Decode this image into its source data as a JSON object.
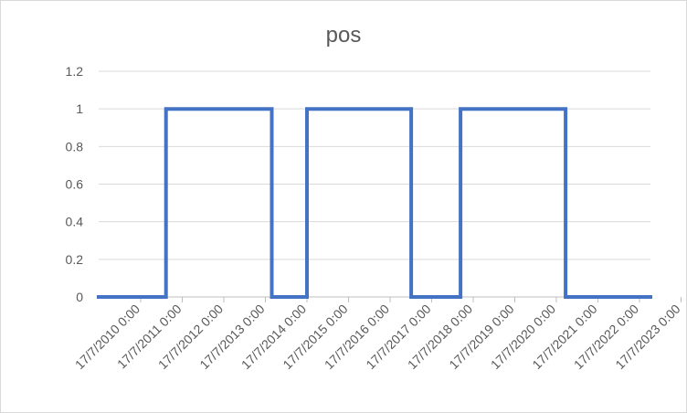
{
  "chart_data": {
    "type": "line",
    "title": "pos",
    "xlabel": "",
    "ylabel": "",
    "step": true,
    "categories": [
      "17/7/2010 0:00",
      "17/7/2011 0:00",
      "17/7/2012 0:00",
      "17/7/2013 0:00",
      "17/7/2014 0:00",
      "17/7/2015 0:00",
      "17/7/2016 0:00",
      "17/7/2017 0:00",
      "17/7/2018 0:00",
      "17/7/2019 0:00",
      "17/7/2020 0:00",
      "17/7/2021 0:00",
      "17/7/2022 0:00",
      "17/7/2023 0:00"
    ],
    "y_ticks": [
      "0",
      "0.2",
      "0.4",
      "0.6",
      "0.8",
      "1",
      "1.2"
    ],
    "ylim": [
      0,
      1.2
    ],
    "grid": true,
    "legend": "none",
    "series": [
      {
        "color": "#4472c4",
        "points": [
          {
            "x": "2010-01-01",
            "y": 0
          },
          {
            "x": "2011-09-17",
            "y": 0
          },
          {
            "x": "2011-09-17",
            "y": 1
          },
          {
            "x": "2014-05-24",
            "y": 1
          },
          {
            "x": "2014-05-24",
            "y": 0
          },
          {
            "x": "2015-04-15",
            "y": 0
          },
          {
            "x": "2015-04-15",
            "y": 1
          },
          {
            "x": "2017-12-05",
            "y": 1
          },
          {
            "x": "2017-12-05",
            "y": 0
          },
          {
            "x": "2019-03-07",
            "y": 0
          },
          {
            "x": "2019-03-07",
            "y": 1
          },
          {
            "x": "2021-11-05",
            "y": 1
          },
          {
            "x": "2021-11-05",
            "y": 0
          },
          {
            "x": "2023-12-31",
            "y": 0
          }
        ]
      }
    ]
  }
}
